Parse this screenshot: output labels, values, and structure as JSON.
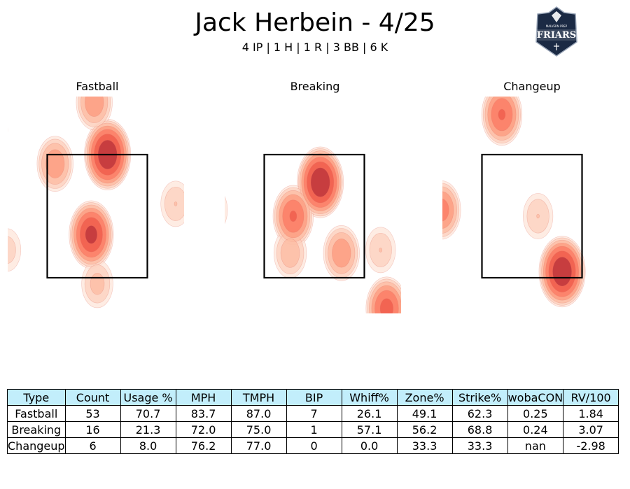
{
  "header": {
    "title": "Jack Herbein - 4/25",
    "subtitle": "4 IP | 1 H | 1 R | 3 BB | 6 K"
  },
  "logo": {
    "text": "FRIARS",
    "small_text": "MALVERN PREP",
    "color": "#1b2a44"
  },
  "colors": {
    "heat_light": "#fee5d9",
    "heat_dark": "#a50f15",
    "header_bg": "#c2eefb"
  },
  "chart_data": {
    "type": "heatmap",
    "panels": [
      {
        "title": "Fastball",
        "density_peaks": [
          {
            "x": 0.17,
            "y": 3.5,
            "w": 1.0
          },
          {
            "x": -0.1,
            "y": 2.2,
            "w": 0.9
          },
          {
            "x": -0.05,
            "y": 4.35,
            "w": 0.5
          },
          {
            "x": -0.7,
            "y": 3.35,
            "w": 0.5
          },
          {
            "x": 1.3,
            "y": 2.7,
            "w": 0.25
          },
          {
            "x": -1.5,
            "y": 1.95,
            "w": 0.2
          },
          {
            "x": -1.7,
            "y": 3.9,
            "w": 0.15
          },
          {
            "x": 0.0,
            "y": 1.4,
            "w": 0.3
          }
        ]
      },
      {
        "title": "Breaking",
        "density_peaks": [
          {
            "x": 0.1,
            "y": 3.05,
            "w": 1.0
          },
          {
            "x": -0.35,
            "y": 2.5,
            "w": 0.7
          },
          {
            "x": 0.45,
            "y": 1.9,
            "w": 0.5
          },
          {
            "x": -0.4,
            "y": 1.9,
            "w": 0.35
          },
          {
            "x": 1.2,
            "y": 1.0,
            "w": 0.75
          },
          {
            "x": -1.7,
            "y": 2.6,
            "w": 0.3
          },
          {
            "x": -1.9,
            "y": 3.2,
            "w": 0.2
          },
          {
            "x": 1.1,
            "y": 1.95,
            "w": 0.25
          }
        ]
      },
      {
        "title": "Changeup",
        "density_peaks": [
          {
            "x": 0.5,
            "y": 1.6,
            "w": 1.0
          },
          {
            "x": -0.5,
            "y": 4.15,
            "w": 0.7
          },
          {
            "x": -1.5,
            "y": 2.6,
            "w": 0.6
          },
          {
            "x": 0.1,
            "y": 2.5,
            "w": 0.25
          }
        ]
      }
    ],
    "strike_zone": {
      "x": [
        -0.83,
        0.83
      ],
      "y": [
        1.5,
        3.5
      ]
    },
    "xlim": [
      -1.5,
      1.5
    ],
    "ylim": [
      0.5,
      4.5
    ]
  },
  "table": {
    "headers": [
      "Type",
      "Count",
      "Usage %",
      "MPH",
      "TMPH",
      "BIP",
      "Whiff%",
      "Zone%",
      "Strike%",
      "wobaCON",
      "RV/100"
    ],
    "rows": [
      [
        "Fastball",
        "53",
        "70.7",
        "83.7",
        "87.0",
        "7",
        "26.1",
        "49.1",
        "62.3",
        "0.25",
        "1.84"
      ],
      [
        "Breaking",
        "16",
        "21.3",
        "72.0",
        "75.0",
        "1",
        "57.1",
        "56.2",
        "68.8",
        "0.24",
        "3.07"
      ],
      [
        "Changeup",
        "6",
        "8.0",
        "76.2",
        "77.0",
        "0",
        "0.0",
        "33.3",
        "33.3",
        "nan",
        "-2.98"
      ]
    ]
  }
}
